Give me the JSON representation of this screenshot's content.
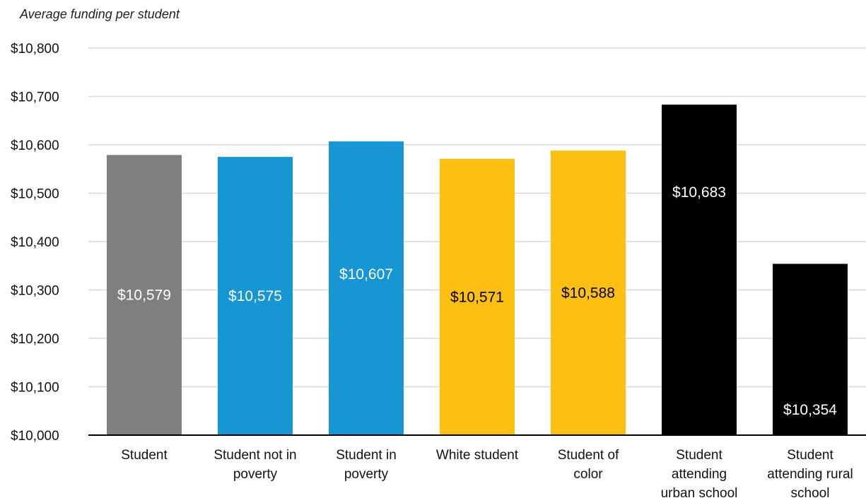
{
  "chart_data": {
    "type": "bar",
    "ylabel": "Average funding per student",
    "xlabel": "",
    "title": "",
    "ylim": [
      10000,
      10800
    ],
    "y_ticks": [
      10000,
      10100,
      10200,
      10300,
      10400,
      10500,
      10600,
      10700,
      10800
    ],
    "y_tick_labels": [
      "$10,000",
      "$10,100",
      "$10,200",
      "$10,300",
      "$10,400",
      "$10,500",
      "$10,600",
      "$10,700",
      "$10,800"
    ],
    "grid": true,
    "legend": "none",
    "categories": [
      "Student",
      "Student not in poverty",
      "Student in poverty",
      "White student",
      "Student of color",
      "Student attending urban school",
      "Student attending rural school"
    ],
    "category_label_lines": [
      [
        "Student"
      ],
      [
        "Student not in",
        "poverty"
      ],
      [
        "Student in",
        "poverty"
      ],
      [
        "White student"
      ],
      [
        "Student of",
        "color"
      ],
      [
        "Student",
        "attending",
        "urban school"
      ],
      [
        "Student",
        "attending rural",
        "school"
      ]
    ],
    "values": [
      10579,
      10575,
      10607,
      10571,
      10588,
      10683,
      10354
    ],
    "value_labels": [
      "$10,579",
      "$10,575",
      "$10,607",
      "$10,571",
      "$10,588",
      "$10,683",
      "$10,354"
    ],
    "bar_colors": [
      "#7f7f7f",
      "#1696d2",
      "#1696d2",
      "#fdbf11",
      "#fdbf11",
      "#000000",
      "#000000"
    ],
    "value_label_colors": [
      "#ffffff",
      "#ffffff",
      "#ffffff",
      "#000000",
      "#000000",
      "#ffffff",
      "#ffffff"
    ]
  }
}
